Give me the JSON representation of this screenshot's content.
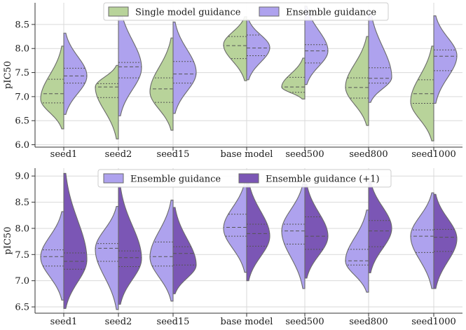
{
  "chart_data": [
    {
      "type": "violin",
      "ylabel": "pIC50",
      "ylim": [
        5.95,
        8.95
      ],
      "yticks": [
        "6.0",
        "6.5",
        "7.0",
        "7.5",
        "8.0",
        "8.5"
      ],
      "categories": [
        "seed1",
        "seed2",
        "seed15",
        "base model",
        "seed500",
        "seed800",
        "seed1000"
      ],
      "legend_position": "top-center",
      "series": [
        {
          "name": "Single model guidance",
          "color": "#b8d39a",
          "side": "left",
          "violins": [
            {
              "min": 6.33,
              "max": 8.05,
              "mode": 6.95,
              "q1": 6.87,
              "median": 7.06,
              "q3": 7.36
            },
            {
              "min": 6.12,
              "max": 7.65,
              "mode": 7.2,
              "q1": 6.98,
              "median": 7.2,
              "q3": 7.27
            },
            {
              "min": 6.3,
              "max": 8.22,
              "mode": 7.1,
              "q1": 6.88,
              "median": 7.16,
              "q3": 7.39
            },
            {
              "min": 7.33,
              "max": 8.66,
              "mode": 8.08,
              "q1": 7.79,
              "median": 8.06,
              "q3": 8.25
            },
            {
              "min": 6.95,
              "max": 7.8,
              "mode": 7.2,
              "q1": 7.09,
              "median": 7.2,
              "q3": 7.4
            },
            {
              "min": 6.4,
              "max": 8.25,
              "mode": 7.2,
              "q1": 6.97,
              "median": 7.19,
              "q3": 7.39
            },
            {
              "min": 6.08,
              "max": 8.05,
              "mode": 6.9,
              "q1": 6.86,
              "median": 7.06,
              "q3": 7.35
            }
          ]
        },
        {
          "name": "Ensemble guidance",
          "color": "#aea2ee",
          "side": "right",
          "violins": [
            {
              "min": 6.63,
              "max": 8.32,
              "mode": 7.43,
              "q1": 7.28,
              "median": 7.43,
              "q3": 7.59
            },
            {
              "min": 6.6,
              "max": 8.85,
              "mode": 7.6,
              "q1": 7.39,
              "median": 7.62,
              "q3": 7.71
            },
            {
              "min": 6.65,
              "max": 8.55,
              "mode": 7.5,
              "q1": 7.28,
              "median": 7.47,
              "q3": 7.73
            },
            {
              "min": 7.35,
              "max": 8.6,
              "mode": 8.02,
              "q1": 7.85,
              "median": 8.01,
              "q3": 8.28
            },
            {
              "min": 7.25,
              "max": 8.88,
              "mode": 7.95,
              "q1": 7.7,
              "median": 7.95,
              "q3": 8.08
            },
            {
              "min": 6.88,
              "max": 8.8,
              "mode": 7.4,
              "q1": 7.28,
              "median": 7.38,
              "q3": 7.6
            },
            {
              "min": 6.86,
              "max": 8.68,
              "mode": 7.85,
              "q1": 7.54,
              "median": 7.84,
              "q3": 7.97
            }
          ]
        }
      ]
    },
    {
      "type": "violin",
      "ylabel": "pIC50",
      "ylim": [
        6.38,
        9.15
      ],
      "yticks": [
        "6.5",
        "7.0",
        "7.5",
        "8.0",
        "8.5",
        "9.0"
      ],
      "categories": [
        "seed1",
        "seed2",
        "seed15",
        "base model",
        "seed500",
        "seed800",
        "seed1000"
      ],
      "legend_position": "top-center",
      "series": [
        {
          "name": "Ensemble guidance",
          "color": "#aea2ee",
          "side": "left",
          "violins": [
            {
              "min": 6.63,
              "max": 8.32,
              "mode": 7.45,
              "q1": 7.28,
              "median": 7.46,
              "q3": 7.59
            },
            {
              "min": 6.45,
              "max": 8.42,
              "mode": 7.6,
              "q1": 7.37,
              "median": 7.62,
              "q3": 7.71
            },
            {
              "min": 6.61,
              "max": 8.54,
              "mode": 7.45,
              "q1": 7.28,
              "median": 7.46,
              "q3": 7.74
            },
            {
              "min": 7.16,
              "max": 8.88,
              "mode": 8.0,
              "q1": 7.85,
              "median": 8.02,
              "q3": 8.27
            },
            {
              "min": 6.85,
              "max": 8.85,
              "mode": 7.95,
              "q1": 7.7,
              "median": 7.95,
              "q3": 8.08
            },
            {
              "min": 6.78,
              "max": 8.35,
              "mode": 7.38,
              "q1": 7.3,
              "median": 7.38,
              "q3": 7.6
            },
            {
              "min": 6.85,
              "max": 8.68,
              "mode": 7.85,
              "q1": 7.54,
              "median": 7.85,
              "q3": 7.97
            }
          ]
        },
        {
          "name": "Ensemble guidance (+1)",
          "color": "#7b56b5",
          "side": "right",
          "violins": [
            {
              "min": 6.47,
              "max": 9.05,
              "mode": 7.4,
              "q1": 7.22,
              "median": 7.37,
              "q3": 7.53
            },
            {
              "min": 6.55,
              "max": 8.8,
              "mode": 7.42,
              "q1": 7.27,
              "median": 7.44,
              "q3": 7.57
            },
            {
              "min": 6.75,
              "max": 8.4,
              "mode": 7.3,
              "q1": 7.3,
              "median": 7.52,
              "q3": 7.65
            },
            {
              "min": 7.0,
              "max": 8.9,
              "mode": 7.85,
              "q1": 7.66,
              "median": 7.9,
              "q3": 8.08
            },
            {
              "min": 7.05,
              "max": 8.84,
              "mode": 7.85,
              "q1": 7.6,
              "median": 7.85,
              "q3": 8.22
            },
            {
              "min": 7.15,
              "max": 8.9,
              "mode": 8.0,
              "q1": 7.65,
              "median": 7.95,
              "q3": 8.15
            },
            {
              "min": 6.85,
              "max": 8.65,
              "mode": 7.8,
              "q1": 7.56,
              "median": 7.83,
              "q3": 7.98
            }
          ]
        }
      ]
    }
  ]
}
